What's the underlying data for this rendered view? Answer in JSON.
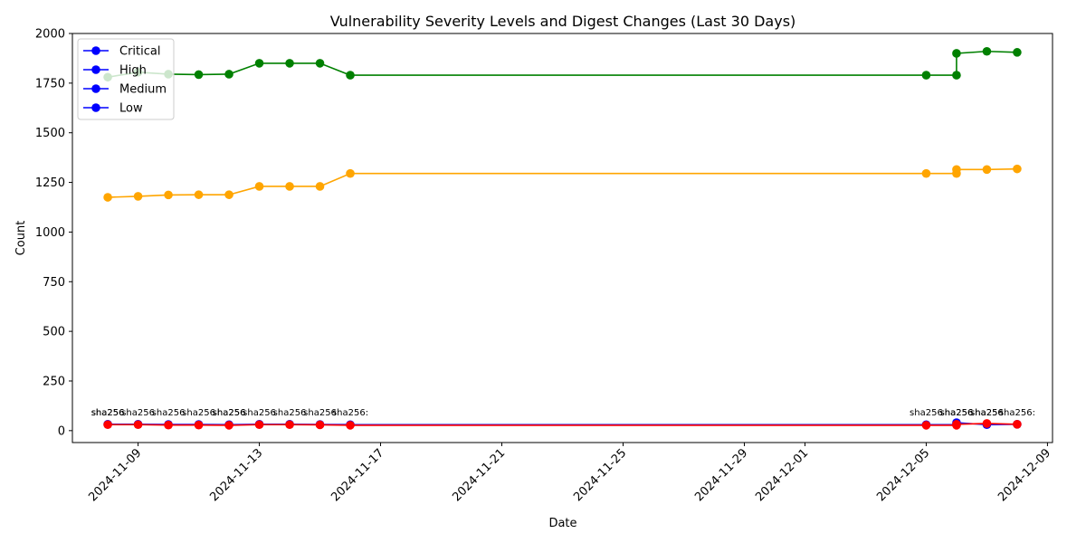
{
  "chart_data": {
    "type": "line",
    "title": "Vulnerability Severity Levels and Digest Changes (Last 30 Days)",
    "xlabel": "Date",
    "ylabel": "Count",
    "xlim": [
      "2024-11-06T20:00",
      "2024-12-09T04:00"
    ],
    "ylim": [
      -60,
      2000
    ],
    "grid": false,
    "legend_position": "top-left",
    "x_ticks": [
      "2024-11-09",
      "2024-11-13",
      "2024-11-17",
      "2024-11-21",
      "2024-11-25",
      "2024-11-29",
      "2024-12-01",
      "2024-12-05",
      "2024-12-09"
    ],
    "y_ticks": [
      0,
      250,
      500,
      750,
      1000,
      1250,
      1500,
      1750,
      2000
    ],
    "legend": [
      {
        "label": "Critical",
        "color": "#0000ff"
      },
      {
        "label": "High",
        "color": "#0000ff"
      },
      {
        "label": "Medium",
        "color": "#0000ff"
      },
      {
        "label": "Low",
        "color": "#0000ff"
      }
    ],
    "series": [
      {
        "color": "#008000",
        "points": [
          [
            "2024-11-08",
            1780
          ],
          [
            "2024-11-09",
            1805
          ],
          [
            "2024-11-10",
            1795
          ],
          [
            "2024-11-11",
            1793
          ],
          [
            "2024-11-12",
            1795
          ],
          [
            "2024-11-13",
            1850
          ],
          [
            "2024-11-14",
            1850
          ],
          [
            "2024-11-15",
            1850
          ],
          [
            "2024-11-16",
            1790
          ],
          [
            "2024-12-05",
            1790
          ],
          [
            "2024-12-06",
            1790
          ],
          [
            "2024-12-06",
            1900
          ],
          [
            "2024-12-07",
            1910
          ],
          [
            "2024-12-08",
            1905
          ]
        ]
      },
      {
        "color": "#ffa500",
        "points": [
          [
            "2024-11-08",
            1175
          ],
          [
            "2024-11-09",
            1180
          ],
          [
            "2024-11-10",
            1187
          ],
          [
            "2024-11-11",
            1188
          ],
          [
            "2024-11-12",
            1188
          ],
          [
            "2024-11-13",
            1230
          ],
          [
            "2024-11-14",
            1230
          ],
          [
            "2024-11-15",
            1230
          ],
          [
            "2024-11-16",
            1295
          ],
          [
            "2024-12-05",
            1295
          ],
          [
            "2024-12-06",
            1295
          ],
          [
            "2024-12-06",
            1315
          ],
          [
            "2024-12-07",
            1315
          ],
          [
            "2024-12-08",
            1318
          ]
        ]
      },
      {
        "color": "#0000ff",
        "points": [
          [
            "2024-11-08",
            32
          ],
          [
            "2024-11-09",
            32
          ],
          [
            "2024-11-10",
            31
          ],
          [
            "2024-11-11",
            31
          ],
          [
            "2024-11-12",
            30
          ],
          [
            "2024-11-13",
            32
          ],
          [
            "2024-11-14",
            32
          ],
          [
            "2024-11-15",
            31
          ],
          [
            "2024-11-16",
            30
          ],
          [
            "2024-12-05",
            30
          ],
          [
            "2024-12-06",
            30
          ],
          [
            "2024-12-06",
            40
          ],
          [
            "2024-12-07",
            30
          ],
          [
            "2024-12-08",
            32
          ]
        ]
      },
      {
        "color": "#ff0000",
        "points": [
          [
            "2024-11-08",
            30
          ],
          [
            "2024-11-09",
            30
          ],
          [
            "2024-11-10",
            28
          ],
          [
            "2024-11-11",
            28
          ],
          [
            "2024-11-12",
            27
          ],
          [
            "2024-11-13",
            30
          ],
          [
            "2024-11-14",
            30
          ],
          [
            "2024-11-15",
            29
          ],
          [
            "2024-11-16",
            27
          ],
          [
            "2024-12-05",
            27
          ],
          [
            "2024-12-06",
            27
          ],
          [
            "2024-12-06",
            32
          ],
          [
            "2024-12-07",
            36
          ],
          [
            "2024-12-08",
            32
          ]
        ]
      }
    ],
    "annotations": [
      {
        "text": "sha256",
        "x": "2024-11-08"
      },
      {
        "text": "sha256",
        "x": "2024-11-08"
      },
      {
        "text": "sha256",
        "x": "2024-11-09"
      },
      {
        "text": "sha256",
        "x": "2024-11-10"
      },
      {
        "text": "sha256",
        "x": "2024-11-11"
      },
      {
        "text": "sha256",
        "x": "2024-11-12"
      },
      {
        "text": "sha256",
        "x": "2024-11-12"
      },
      {
        "text": "sha256",
        "x": "2024-11-13"
      },
      {
        "text": "sha256",
        "x": "2024-11-14"
      },
      {
        "text": "sha256",
        "x": "2024-11-15"
      },
      {
        "text": "sha256:",
        "x": "2024-11-16"
      },
      {
        "text": "sha256",
        "x": "2024-12-05"
      },
      {
        "text": "sha256",
        "x": "2024-12-06"
      },
      {
        "text": "sha256",
        "x": "2024-12-06"
      },
      {
        "text": "sha256",
        "x": "2024-12-07"
      },
      {
        "text": "sha256",
        "x": "2024-12-07"
      },
      {
        "text": "sha256:",
        "x": "2024-12-08"
      }
    ],
    "annotation_level": 95
  }
}
